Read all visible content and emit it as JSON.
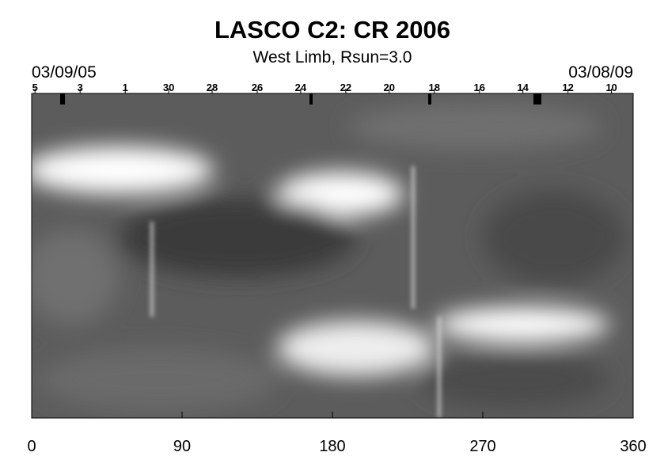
{
  "chart_data": {
    "type": "synoptic-map",
    "title": "LASCO C2: CR 2006",
    "subtitle": "West Limb, Rsun=3.0",
    "start_date": "03/09/05",
    "end_date": "03/08/09",
    "xlim": [
      0,
      360
    ],
    "xticks": [
      0,
      90,
      180,
      270,
      360
    ],
    "top_ticks": [
      {
        "value": 2,
        "label": "5"
      },
      {
        "value": 29,
        "label": "3"
      },
      {
        "value": 56,
        "label": "1"
      },
      {
        "value": 82,
        "label": "30"
      },
      {
        "value": 108,
        "label": "28"
      },
      {
        "value": 135,
        "label": "26"
      },
      {
        "value": 161,
        "label": "24"
      },
      {
        "value": 188,
        "label": "22"
      },
      {
        "value": 214,
        "label": "20"
      },
      {
        "value": 241,
        "label": "18"
      },
      {
        "value": 268,
        "label": "16"
      },
      {
        "value": 294,
        "label": "14"
      },
      {
        "value": 321,
        "label": "12"
      },
      {
        "value": 347,
        "label": "10"
      }
    ]
  }
}
